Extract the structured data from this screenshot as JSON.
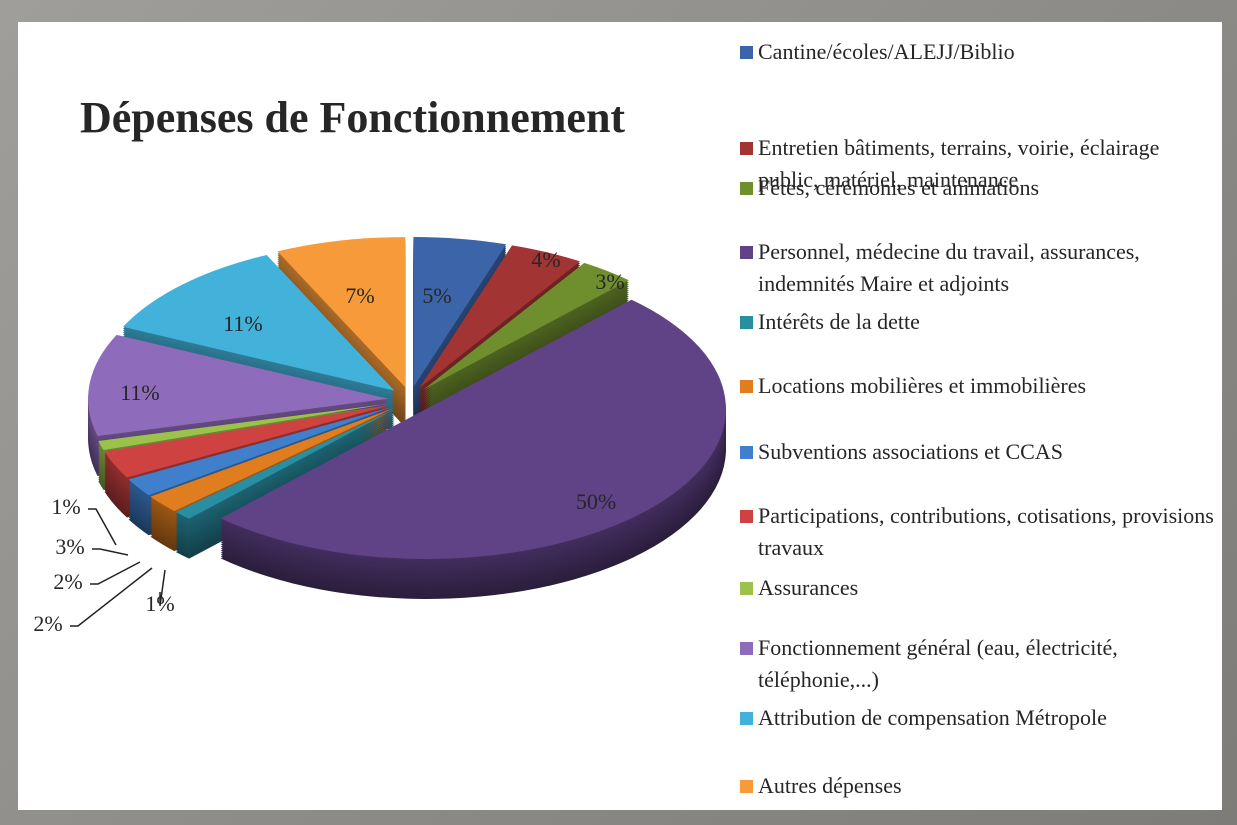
{
  "chart_data": {
    "type": "pie",
    "title": "Dépenses de Fonctionnement",
    "categories": [
      "Cantine/écoles/ALEJJ/Biblio",
      "Entretien bâtiments, terrains, voirie, éclairage public, matériel, maintenance",
      "Fêtes, cérémonies et animations",
      "Personnel, médecine du travail, assurances, indemnités Maire et adjoints",
      "Intérêts de la dette",
      "Locations mobilières et immobilières",
      "Subventions associations et CCAS",
      "Participations, contributions, cotisations, provisions travaux",
      "Assurances",
      "Fonctionnement général (eau, électricité, téléphonie,...)",
      "Attribution de compensation Métropole",
      "Autres dépenses"
    ],
    "values": [
      5,
      4,
      3,
      50,
      1,
      2,
      2,
      3,
      1,
      11,
      11,
      7
    ],
    "value_labels": [
      "5%",
      "4%",
      "3%",
      "50%",
      "1%",
      "2%",
      "2%",
      "3%",
      "1%",
      "11%",
      "11%",
      "7%"
    ],
    "colors": [
      "#3c64a8",
      "#a33434",
      "#6f8f2f",
      "#604286",
      "#2a8ea3",
      "#e07e1f",
      "#3f7fcc",
      "#cf4242",
      "#9dc24b",
      "#8f6bbb",
      "#43b2da",
      "#f79a3a"
    ],
    "legend": "right"
  }
}
